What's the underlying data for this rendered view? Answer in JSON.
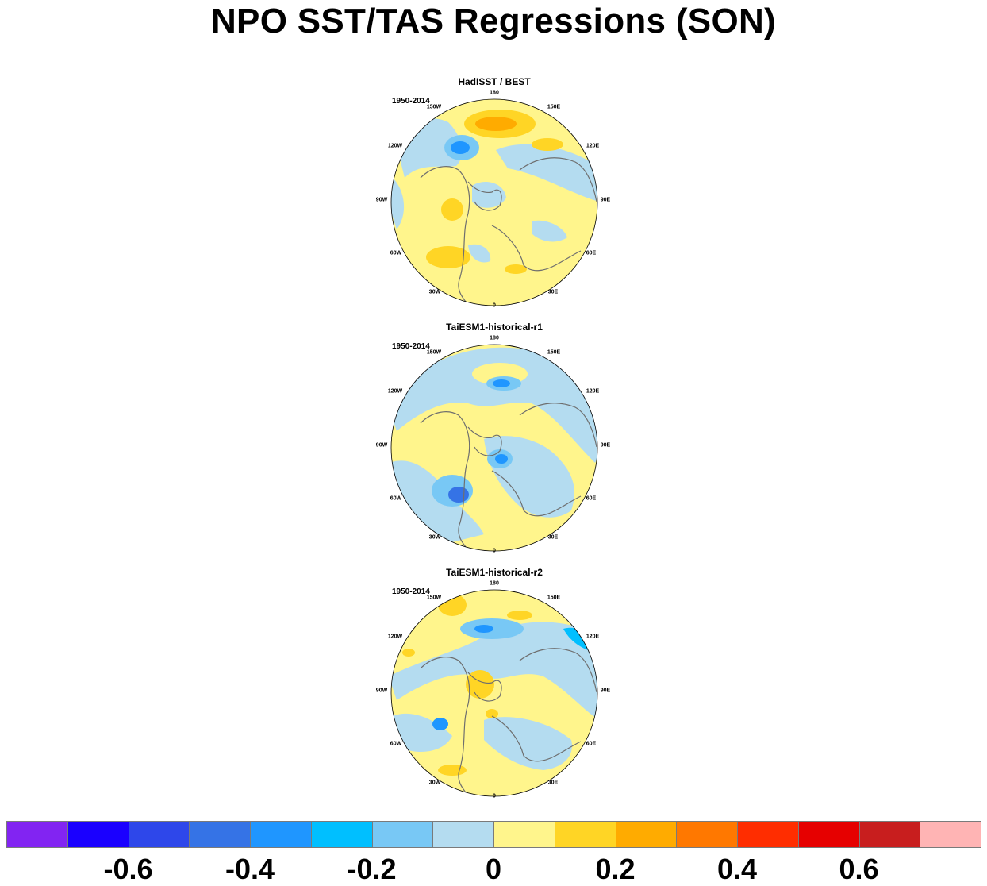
{
  "title": "NPO SST/TAS Regressions (SON)",
  "lon_labels": [
    "180",
    "150E",
    "120E",
    "90E",
    "60E",
    "30E",
    "0",
    "30W",
    "60W",
    "90W",
    "120W",
    "150W"
  ],
  "panels": [
    {
      "title": "HadISST / BEST",
      "period": "1950-2014"
    },
    {
      "title": "TaiESM1-historical-r1",
      "period": "1950-2014"
    },
    {
      "title": "TaiESM1-historical-r2",
      "period": "1950-2014"
    }
  ],
  "colorbar": {
    "colors": [
      "#8224f2",
      "#1a00ff",
      "#2e47ea",
      "#3573e6",
      "#1f96ff",
      "#00bfff",
      "#78c8f5",
      "#b4dcf0",
      "#fff58c",
      "#ffd525",
      "#ffab00",
      "#ff7800",
      "#ff2d00",
      "#e60000",
      "#c81e1e",
      "#ffb4b4"
    ],
    "tick_labels": [
      "-0.6",
      "-0.4",
      "-0.2",
      "0",
      "0.2",
      "0.4",
      "0.6"
    ],
    "tick_values": [
      -0.6,
      -0.4,
      -0.2,
      0,
      0.2,
      0.4,
      0.6
    ],
    "levels": [
      -0.7,
      -0.6,
      -0.5,
      -0.4,
      -0.3,
      -0.2,
      -0.1,
      0,
      0.1,
      0.2,
      0.3,
      0.4,
      0.5,
      0.6,
      0.7
    ]
  }
}
